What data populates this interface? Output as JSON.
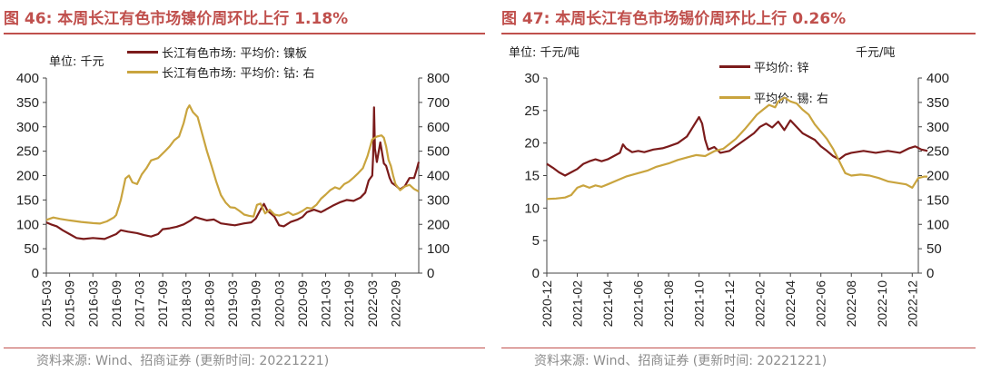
{
  "colors": {
    "dark_red": "#7b1b1b",
    "gold": "#c9a43e",
    "title_red": "#c0504d",
    "source_gray": "#8c8c8c"
  },
  "chart_data": [
    {
      "id": "fig46",
      "type": "line",
      "figure_label": "图 46:",
      "title": "本周长江有色市场镍价周环比上行 1.18%",
      "unit_left": "单位: 千元",
      "source": "资料来源: Wind、招商证券 (更新时间: 20221221)",
      "x_ticks": [
        "2015-03",
        "2015-09",
        "2016-03",
        "2016-09",
        "2017-03",
        "2017-09",
        "2018-03",
        "2018-09",
        "2019-03",
        "2019-09",
        "2020-03",
        "2020-09",
        "2021-03",
        "2021-09",
        "2022-03",
        "2022-09"
      ],
      "y_left": {
        "min": 0,
        "max": 400,
        "ticks": [
          0,
          50,
          100,
          150,
          200,
          250,
          300,
          350,
          400
        ]
      },
      "y_right": {
        "min": 0,
        "max": 800,
        "ticks": [
          0,
          100,
          200,
          300,
          400,
          500,
          600,
          700,
          800
        ]
      },
      "series": [
        {
          "name": "长江有色市场: 平均价: 镍板",
          "axis": "left",
          "color": "#7b1b1b",
          "points": [
            [
              0,
              104
            ],
            [
              0.2,
              100
            ],
            [
              0.45,
              96
            ],
            [
              0.7,
              88
            ],
            [
              1,
              80
            ],
            [
              1.3,
              72
            ],
            [
              1.6,
              70
            ],
            [
              2,
              72
            ],
            [
              2.5,
              70
            ],
            [
              3,
              80
            ],
            [
              3.2,
              88
            ],
            [
              3.5,
              85
            ],
            [
              3.9,
              82
            ],
            [
              4.2,
              78
            ],
            [
              4.5,
              75
            ],
            [
              4.8,
              80
            ],
            [
              5,
              90
            ],
            [
              5.3,
              92
            ],
            [
              5.6,
              95
            ],
            [
              5.9,
              100
            ],
            [
              6.2,
              108
            ],
            [
              6.4,
              115
            ],
            [
              6.6,
              112
            ],
            [
              6.9,
              108
            ],
            [
              7.2,
              110
            ],
            [
              7.5,
              102
            ],
            [
              7.8,
              100
            ],
            [
              8.1,
              98
            ],
            [
              8.5,
              102
            ],
            [
              8.8,
              104
            ],
            [
              9,
              112
            ],
            [
              9.2,
              130
            ],
            [
              9.35,
              142
            ],
            [
              9.5,
              128
            ],
            [
              9.8,
              116
            ],
            [
              10,
              98
            ],
            [
              10.2,
              96
            ],
            [
              10.5,
              105
            ],
            [
              10.8,
              110
            ],
            [
              11,
              115
            ],
            [
              11.2,
              125
            ],
            [
              11.5,
              130
            ],
            [
              11.8,
              125
            ],
            [
              12,
              130
            ],
            [
              12.3,
              138
            ],
            [
              12.6,
              145
            ],
            [
              12.9,
              150
            ],
            [
              13.2,
              148
            ],
            [
              13.5,
              155
            ],
            [
              13.7,
              165
            ],
            [
              13.85,
              190
            ],
            [
              14,
              200
            ],
            [
              14.04,
              240
            ],
            [
              14.08,
              340
            ],
            [
              14.12,
              255
            ],
            [
              14.2,
              228
            ],
            [
              14.35,
              268
            ],
            [
              14.5,
              225
            ],
            [
              14.6,
              220
            ],
            [
              14.75,
              195
            ],
            [
              14.85,
              185
            ],
            [
              15,
              180
            ],
            [
              15.2,
              172
            ],
            [
              15.4,
              178
            ],
            [
              15.6,
              195
            ],
            [
              15.8,
              195
            ],
            [
              15.9,
              210
            ],
            [
              16,
              228
            ]
          ]
        },
        {
          "name": "长江有色市场: 平均价: 钴: 右",
          "axis": "right",
          "color": "#c9a43e",
          "points": [
            [
              0,
              218
            ],
            [
              0.3,
              228
            ],
            [
              0.6,
              222
            ],
            [
              1,
              216
            ],
            [
              1.5,
              210
            ],
            [
              2,
              205
            ],
            [
              2.3,
              203
            ],
            [
              2.6,
              212
            ],
            [
              2.9,
              228
            ],
            [
              3,
              238
            ],
            [
              3.2,
              300
            ],
            [
              3.4,
              388
            ],
            [
              3.55,
              400
            ],
            [
              3.7,
              372
            ],
            [
              3.9,
              365
            ],
            [
              4.1,
              405
            ],
            [
              4.3,
              430
            ],
            [
              4.5,
              462
            ],
            [
              4.8,
              472
            ],
            [
              5.1,
              500
            ],
            [
              5.3,
              520
            ],
            [
              5.5,
              545
            ],
            [
              5.7,
              560
            ],
            [
              5.9,
              615
            ],
            [
              6.05,
              672
            ],
            [
              6.15,
              688
            ],
            [
              6.3,
              660
            ],
            [
              6.5,
              640
            ],
            [
              6.7,
              570
            ],
            [
              6.9,
              500
            ],
            [
              7.1,
              440
            ],
            [
              7.3,
              375
            ],
            [
              7.5,
              320
            ],
            [
              7.7,
              290
            ],
            [
              7.9,
              270
            ],
            [
              8.1,
              268
            ],
            [
              8.3,
              255
            ],
            [
              8.5,
              240
            ],
            [
              8.7,
              235
            ],
            [
              8.9,
              232
            ],
            [
              9.05,
              280
            ],
            [
              9.2,
              285
            ],
            [
              9.4,
              245
            ],
            [
              9.6,
              260
            ],
            [
              9.8,
              240
            ],
            [
              10,
              236
            ],
            [
              10.2,
              242
            ],
            [
              10.4,
              250
            ],
            [
              10.6,
              238
            ],
            [
              10.8,
              245
            ],
            [
              11,
              255
            ],
            [
              11.2,
              268
            ],
            [
              11.4,
              265
            ],
            [
              11.6,
              280
            ],
            [
              11.8,
              305
            ],
            [
              12,
              322
            ],
            [
              12.2,
              340
            ],
            [
              12.4,
              352
            ],
            [
              12.6,
              345
            ],
            [
              12.8,
              365
            ],
            [
              13,
              375
            ],
            [
              13.2,
              392
            ],
            [
              13.4,
              410
            ],
            [
              13.6,
              430
            ],
            [
              13.8,
              480
            ],
            [
              14,
              548
            ],
            [
              14.2,
              560
            ],
            [
              14.4,
              565
            ],
            [
              14.5,
              555
            ],
            [
              14.6,
              520
            ],
            [
              14.7,
              465
            ],
            [
              14.8,
              440
            ],
            [
              14.9,
              400
            ],
            [
              15,
              365
            ],
            [
              15.2,
              340
            ],
            [
              15.4,
              355
            ],
            [
              15.6,
              362
            ],
            [
              15.8,
              345
            ],
            [
              16,
              335
            ]
          ]
        }
      ]
    },
    {
      "id": "fig47",
      "type": "line",
      "figure_label": "图 47:",
      "title": "本周长江有色市场锡价周环比上行 0.26%",
      "unit_left": "单位: 千元/吨",
      "unit_right": "千元/吨",
      "source": "资料来源: Wind、招商证券 (更新时间: 20221221)",
      "x_ticks": [
        "2020-12",
        "2021-02",
        "2021-04",
        "2021-06",
        "2021-08",
        "2021-10",
        "2021-12",
        "2022-02",
        "2022-04",
        "2022-06",
        "2022-08",
        "2022-10",
        "2022-12"
      ],
      "y_left": {
        "min": 0,
        "max": 30,
        "ticks": [
          0,
          5,
          10,
          15,
          20,
          25,
          30
        ]
      },
      "y_right": {
        "min": 0,
        "max": 400,
        "ticks": [
          0,
          50,
          100,
          150,
          200,
          250,
          300,
          350,
          400
        ]
      },
      "series": [
        {
          "name": "平均价: 锌",
          "axis": "left",
          "color": "#7b1b1b",
          "points": [
            [
              0,
              16.8
            ],
            [
              0.2,
              16.2
            ],
            [
              0.4,
              15.5
            ],
            [
              0.6,
              15.0
            ],
            [
              0.8,
              15.5
            ],
            [
              1,
              16
            ],
            [
              1.2,
              16.8
            ],
            [
              1.4,
              17.2
            ],
            [
              1.6,
              17.5
            ],
            [
              1.8,
              17.2
            ],
            [
              2,
              17.5
            ],
            [
              2.2,
              18.0
            ],
            [
              2.4,
              18.5
            ],
            [
              2.5,
              19.8
            ],
            [
              2.6,
              19.2
            ],
            [
              2.8,
              18.6
            ],
            [
              3,
              18.8
            ],
            [
              3.2,
              18.6
            ],
            [
              3.5,
              19.0
            ],
            [
              3.8,
              19.2
            ],
            [
              4,
              19.5
            ],
            [
              4.3,
              20.0
            ],
            [
              4.6,
              21.0
            ],
            [
              4.8,
              22.5
            ],
            [
              5,
              24.0
            ],
            [
              5.1,
              23.0
            ],
            [
              5.2,
              20.5
            ],
            [
              5.3,
              19.0
            ],
            [
              5.5,
              19.4
            ],
            [
              5.7,
              18.5
            ],
            [
              6,
              18.8
            ],
            [
              6.2,
              19.5
            ],
            [
              6.5,
              20.5
            ],
            [
              6.8,
              21.5
            ],
            [
              7,
              22.5
            ],
            [
              7.2,
              23.0
            ],
            [
              7.4,
              22.4
            ],
            [
              7.6,
              23.3
            ],
            [
              7.8,
              22.0
            ],
            [
              8,
              23.5
            ],
            [
              8.2,
              22.5
            ],
            [
              8.4,
              21.5
            ],
            [
              8.6,
              21.0
            ],
            [
              8.8,
              20.5
            ],
            [
              9,
              19.5
            ],
            [
              9.2,
              18.8
            ],
            [
              9.4,
              18.0
            ],
            [
              9.6,
              17.5
            ],
            [
              9.8,
              18.2
            ],
            [
              10,
              18.5
            ],
            [
              10.4,
              18.8
            ],
            [
              10.8,
              18.5
            ],
            [
              11.2,
              18.8
            ],
            [
              11.6,
              18.5
            ],
            [
              11.9,
              19.2
            ],
            [
              12.1,
              19.5
            ],
            [
              12.3,
              19.0
            ],
            [
              12.5,
              18.8
            ]
          ]
        },
        {
          "name": "平均价: 锡: 右",
          "axis": "right",
          "color": "#c9a43e",
          "points": [
            [
              0,
              152
            ],
            [
              0.3,
              153
            ],
            [
              0.6,
              155
            ],
            [
              0.8,
              160
            ],
            [
              1,
              175
            ],
            [
              1.2,
              180
            ],
            [
              1.4,
              175
            ],
            [
              1.6,
              180
            ],
            [
              1.8,
              177
            ],
            [
              2,
              182
            ],
            [
              2.3,
              190
            ],
            [
              2.6,
              198
            ],
            [
              3,
              205
            ],
            [
              3.3,
              210
            ],
            [
              3.6,
              218
            ],
            [
              4,
              225
            ],
            [
              4.3,
              232
            ],
            [
              4.6,
              237
            ],
            [
              4.9,
              242
            ],
            [
              5.2,
              240
            ],
            [
              5.5,
              250
            ],
            [
              5.8,
              255
            ],
            [
              6,
              265
            ],
            [
              6.2,
              275
            ],
            [
              6.5,
              295
            ],
            [
              6.7,
              310
            ],
            [
              6.9,
              325
            ],
            [
              7.1,
              335
            ],
            [
              7.3,
              345
            ],
            [
              7.5,
              340
            ],
            [
              7.6,
              352
            ],
            [
              7.8,
              360
            ],
            [
              8,
              352
            ],
            [
              8.2,
              348
            ],
            [
              8.4,
              335
            ],
            [
              8.6,
              325
            ],
            [
              8.8,
              305
            ],
            [
              9,
              290
            ],
            [
              9.2,
              275
            ],
            [
              9.4,
              255
            ],
            [
              9.6,
              230
            ],
            [
              9.8,
              205
            ],
            [
              10,
              200
            ],
            [
              10.3,
              202
            ],
            [
              10.6,
              200
            ],
            [
              10.9,
              195
            ],
            [
              11.2,
              188
            ],
            [
              11.5,
              185
            ],
            [
              11.8,
              182
            ],
            [
              12,
              175
            ],
            [
              12.2,
              195
            ],
            [
              12.4,
              198
            ],
            [
              12.5,
              198
            ]
          ]
        }
      ]
    }
  ]
}
